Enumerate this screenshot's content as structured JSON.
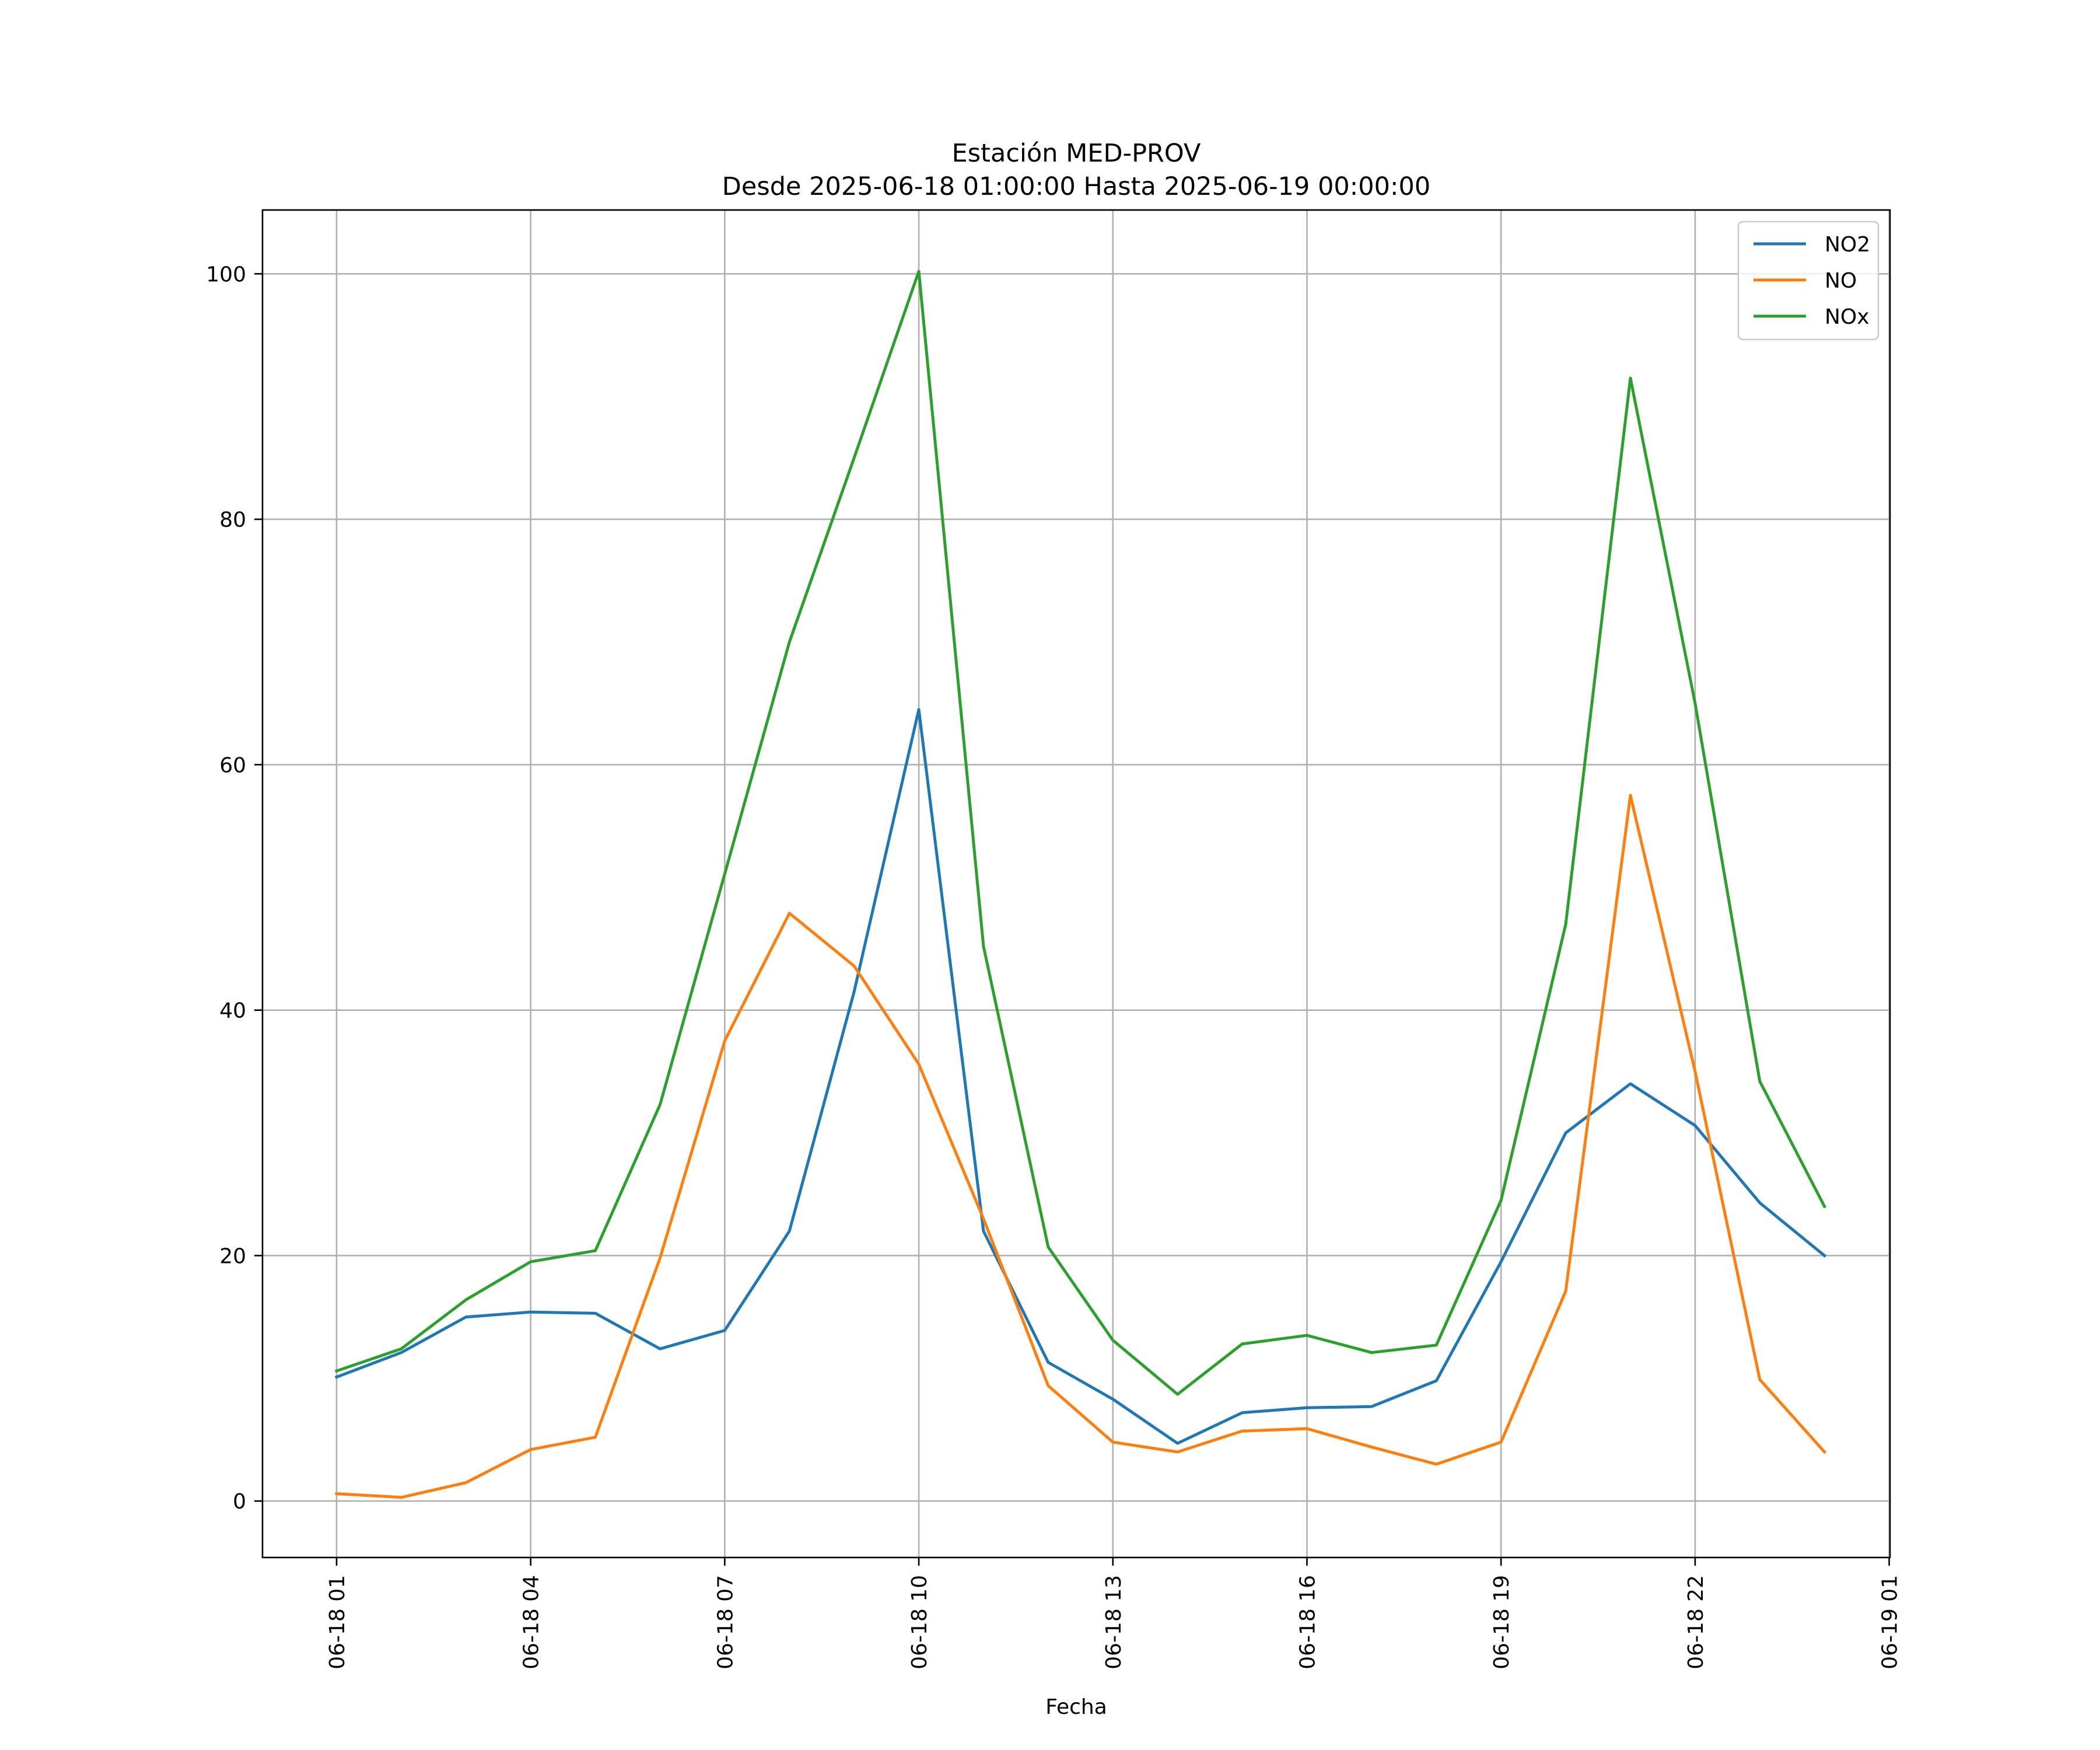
{
  "chart_data": {
    "type": "line",
    "title": "Estación MED-PROV",
    "subtitle": "Desde 2025-06-18 01:00:00 Hasta 2025-06-19 00:00:00",
    "xlabel": "Fecha",
    "ylabel": "",
    "x": [
      "06-18 01",
      "06-18 02",
      "06-18 03",
      "06-18 04",
      "06-18 05",
      "06-18 06",
      "06-18 07",
      "06-18 08",
      "06-18 09",
      "06-18 10",
      "06-18 11",
      "06-18 12",
      "06-18 13",
      "06-18 14",
      "06-18 15",
      "06-18 16",
      "06-18 17",
      "06-18 18",
      "06-18 19",
      "06-18 20",
      "06-18 21",
      "06-18 22",
      "06-18 23",
      "06-19 00"
    ],
    "x_ticks": [
      "06-18 01",
      "06-18 04",
      "06-18 07",
      "06-18 10",
      "06-18 13",
      "06-18 16",
      "06-18 19",
      "06-18 22",
      "06-19 01"
    ],
    "y_ticks": [
      "0",
      "20",
      "40",
      "60",
      "80",
      "100"
    ],
    "ylim": [
      -4.6,
      105.2
    ],
    "grid": true,
    "legend_position": "top-right",
    "series": [
      {
        "name": "NO2",
        "color": "#1f77b4",
        "values": [
          10.1,
          12.1,
          15.0,
          15.4,
          15.3,
          12.4,
          13.9,
          22.0,
          41.5,
          64.5,
          22.0,
          11.3,
          8.3,
          4.7,
          7.2,
          7.6,
          7.7,
          9.8,
          19.5,
          30.0,
          34.0,
          30.6,
          24.3,
          20.0
        ]
      },
      {
        "name": "NO",
        "color": "#ff7f0e",
        "values": [
          0.6,
          0.3,
          1.5,
          4.2,
          5.2,
          19.8,
          37.5,
          47.9,
          43.6,
          35.6,
          23.0,
          9.4,
          4.8,
          4.0,
          5.7,
          5.9,
          4.4,
          3.0,
          4.8,
          17.1,
          57.5,
          35.0,
          9.9,
          4.0
        ]
      },
      {
        "name": "NOx",
        "color": "#2ca02c",
        "values": [
          10.6,
          12.4,
          16.4,
          19.5,
          20.4,
          32.3,
          51.1,
          70.0,
          85.0,
          100.2,
          45.2,
          20.7,
          13.1,
          8.7,
          12.8,
          13.5,
          12.1,
          12.7,
          24.5,
          47.0,
          91.5,
          65.0,
          34.2,
          24.0
        ]
      }
    ]
  }
}
